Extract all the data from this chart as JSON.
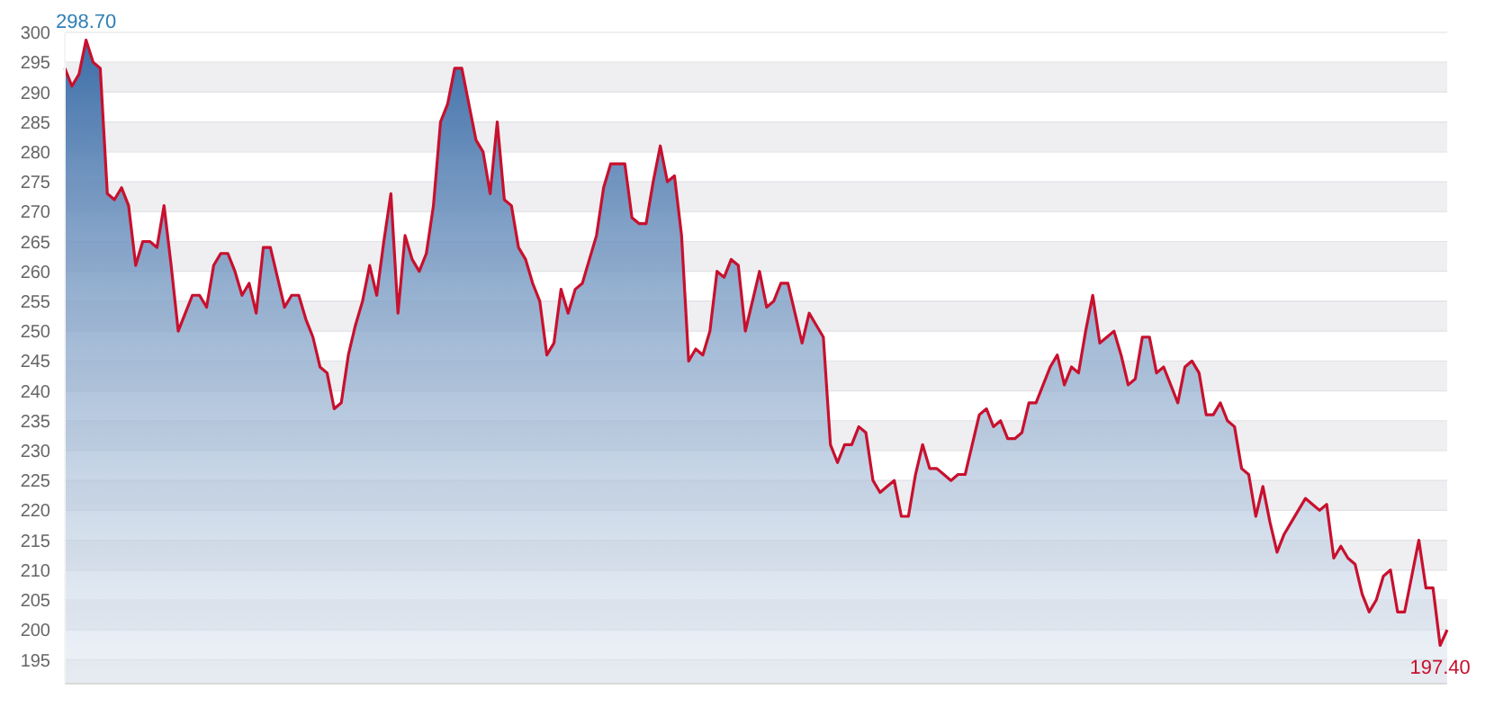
{
  "chart_data": {
    "type": "area",
    "grid": "y",
    "ylim": [
      191,
      300
    ],
    "yticks": [
      195,
      200,
      205,
      210,
      215,
      220,
      225,
      230,
      235,
      240,
      245,
      250,
      255,
      260,
      265,
      270,
      275,
      280,
      285,
      290,
      295,
      300
    ],
    "categories": [
      null,
      null,
      null,
      null,
      null,
      null,
      null,
      null,
      null,
      null,
      null,
      null,
      null,
      null,
      null,
      null,
      null,
      null,
      null,
      null,
      null,
      null,
      null,
      null,
      null,
      null,
      null,
      null,
      null,
      null,
      null,
      null,
      null,
      null,
      null,
      null,
      null,
      null,
      null,
      null,
      null,
      null,
      null,
      null,
      null,
      null,
      null,
      null,
      null,
      null,
      null,
      null,
      null,
      null,
      null,
      null,
      null,
      null,
      null,
      null,
      null,
      null,
      null,
      null,
      null,
      null,
      null,
      null,
      null,
      null,
      null,
      null,
      null,
      null,
      null,
      null,
      null,
      null,
      null,
      null,
      null,
      null,
      null,
      null,
      null,
      null,
      null,
      null,
      null,
      null,
      null,
      null,
      null,
      null,
      null,
      null,
      null,
      null,
      null,
      null,
      null,
      null,
      null,
      null,
      null,
      null,
      null,
      null,
      null,
      null,
      null,
      null,
      null,
      null,
      null,
      null,
      null,
      null,
      null,
      null,
      null,
      null,
      null,
      null,
      null,
      null,
      null,
      null,
      null,
      null,
      null,
      null,
      null,
      null,
      null,
      null,
      null,
      null,
      null,
      null,
      null,
      null,
      null,
      null,
      null,
      null,
      null,
      null,
      null,
      null,
      null,
      null,
      null,
      null,
      null,
      null,
      null,
      null,
      null,
      null,
      null,
      null,
      null,
      null,
      null,
      null,
      null,
      null,
      null,
      null,
      null,
      null,
      null,
      null,
      null,
      null,
      null,
      null,
      null,
      null,
      null,
      null,
      null,
      null,
      null,
      null,
      null,
      null,
      null,
      null,
      null,
      null,
      null,
      null,
      null,
      null
    ],
    "series": [
      {
        "color": "#c8102e",
        "values": [
          294,
          291,
          293,
          298.7,
          295,
          294,
          273,
          272,
          274,
          271,
          261,
          265,
          265,
          264,
          271,
          261,
          250,
          253,
          256,
          256,
          254,
          261,
          263,
          263,
          260,
          256,
          258,
          253,
          264,
          264,
          259,
          254,
          256,
          256,
          252,
          249,
          244,
          243,
          237,
          238,
          246,
          251,
          255,
          261,
          256,
          265,
          273,
          253,
          266,
          262,
          260,
          263,
          271,
          285,
          288,
          294,
          294,
          288,
          282,
          280,
          273,
          285,
          272,
          271,
          264,
          262,
          258,
          255,
          246,
          248,
          257,
          253,
          257,
          258,
          262,
          266,
          274,
          278,
          278,
          278,
          269,
          268,
          268,
          275,
          281,
          275,
          276,
          266,
          245,
          247,
          246,
          250,
          260,
          259,
          262,
          261,
          250,
          255,
          260,
          254,
          255,
          258,
          258,
          253,
          248,
          253,
          251,
          249,
          231,
          228,
          231,
          231,
          234,
          233,
          225,
          223,
          224,
          225,
          219,
          219,
          226,
          231,
          227,
          227,
          226,
          225,
          226,
          226,
          231,
          236,
          237,
          234,
          235,
          232,
          232,
          233,
          238,
          238,
          241,
          244,
          246,
          241,
          244,
          243,
          250,
          256,
          248,
          249,
          250,
          246,
          241,
          242,
          249,
          249,
          243,
          244,
          241,
          238,
          244,
          245,
          243,
          236,
          236,
          238,
          235,
          234,
          227,
          226,
          219,
          224,
          218,
          213,
          216,
          218,
          220,
          222,
          221,
          220,
          221,
          212,
          214,
          212,
          211,
          206,
          203,
          205,
          209,
          210,
          203,
          203,
          209,
          215,
          207,
          207,
          197.4,
          200
        ],
        "value_labels": [
          null,
          null,
          null,
          "298.70",
          null,
          null,
          null,
          null,
          null,
          null,
          null,
          null,
          null,
          null,
          null,
          null,
          null,
          null,
          null,
          null,
          null,
          null,
          null,
          null,
          null,
          null,
          null,
          null,
          null,
          null,
          null,
          null,
          null,
          null,
          null,
          null,
          null,
          null,
          null,
          null,
          null,
          null,
          null,
          null,
          null,
          null,
          null,
          null,
          null,
          null,
          null,
          null,
          null,
          null,
          null,
          null,
          null,
          null,
          null,
          null,
          null,
          null,
          null,
          null,
          null,
          null,
          null,
          null,
          null,
          null,
          null,
          null,
          null,
          null,
          null,
          null,
          null,
          null,
          null,
          null,
          null,
          null,
          null,
          null,
          null,
          null,
          null,
          null,
          null,
          null,
          null,
          null,
          null,
          null,
          null,
          null,
          null,
          null,
          null,
          null,
          null,
          null,
          null,
          null,
          null,
          null,
          null,
          null,
          null,
          null,
          null,
          null,
          null,
          null,
          null,
          null,
          null,
          null,
          null,
          null,
          null,
          null,
          null,
          null,
          null,
          null,
          null,
          null,
          null,
          null,
          null,
          null,
          null,
          null,
          null,
          null,
          null,
          null,
          null,
          null,
          null,
          null,
          null,
          null,
          null,
          null,
          null,
          null,
          null,
          null,
          null,
          null,
          null,
          null,
          null,
          null,
          null,
          null,
          null,
          null,
          null,
          null,
          null,
          null,
          null,
          null,
          null,
          null,
          null,
          null,
          null,
          null,
          null,
          null,
          null,
          null,
          null,
          null,
          null,
          null,
          null,
          null,
          null,
          null,
          null,
          null,
          null,
          null,
          null,
          null,
          null,
          null,
          null,
          null,
          "197.40",
          null
        ]
      }
    ]
  }
}
